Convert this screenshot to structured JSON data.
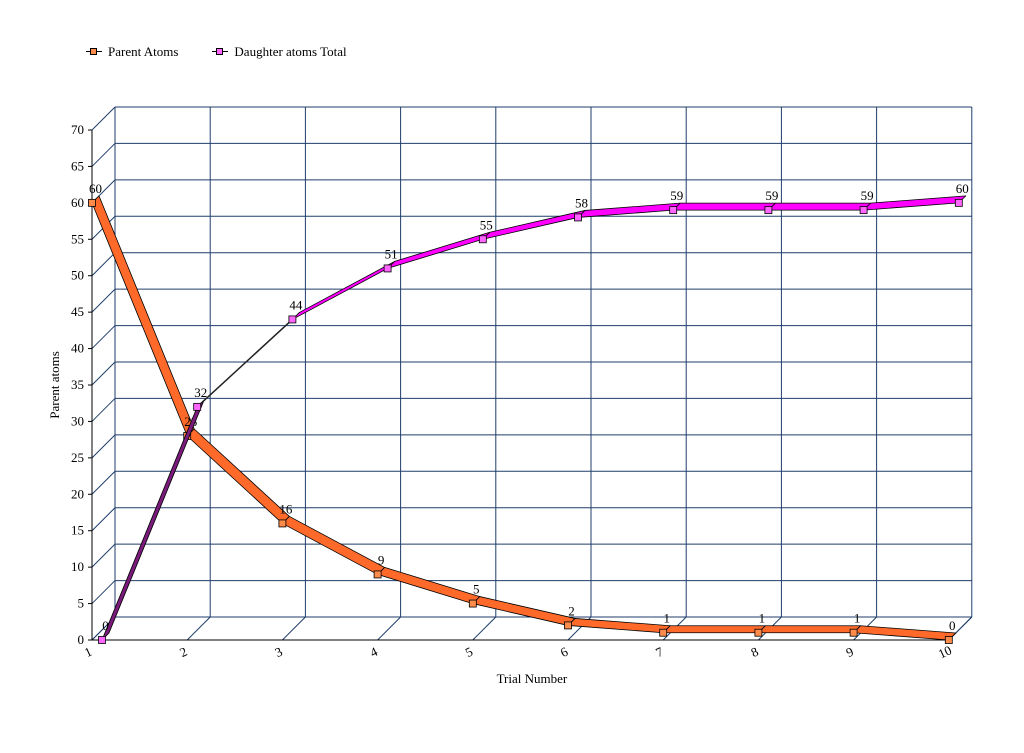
{
  "chart_data": {
    "type": "line",
    "title": "",
    "xlabel": "Trial Number",
    "ylabel": "Parent atoms",
    "categories": [
      "1",
      "2",
      "3",
      "4",
      "5",
      "6",
      "7",
      "8",
      "9",
      "10"
    ],
    "ylim": [
      0,
      70
    ],
    "yticks": [
      "0",
      "5",
      "10",
      "15",
      "20",
      "25",
      "30",
      "35",
      "40",
      "45",
      "50",
      "55",
      "60",
      "65",
      "70"
    ],
    "grid": true,
    "legend_position": "top-left",
    "series": [
      {
        "name": "Parent Atoms",
        "values": [
          60,
          28,
          16,
          9,
          5,
          2,
          1,
          1,
          1,
          0
        ],
        "labels": [
          "60",
          "28",
          "16",
          "9",
          "5",
          "2",
          "1",
          "1",
          "1",
          "0"
        ],
        "color": "#ff6a2b",
        "marker_color": "#ff8c4a"
      },
      {
        "name": "Daughter atoms Total",
        "values": [
          0,
          32,
          44,
          51,
          55,
          58,
          59,
          59,
          59,
          60
        ],
        "labels": [
          "0",
          "32",
          "44",
          "51",
          "55",
          "58",
          "59",
          "59",
          "59",
          "60"
        ],
        "color": "#ff00ff",
        "marker_color": "#ff66ff",
        "shade_color": "#7a1a7a"
      }
    ]
  }
}
